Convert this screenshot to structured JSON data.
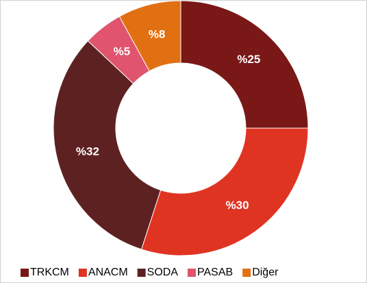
{
  "chart_data": {
    "type": "donut",
    "categories": [
      "TRKCM",
      "ANACM",
      "SODA",
      "PASAB",
      "Diğer"
    ],
    "values": [
      25,
      30,
      32,
      5,
      8
    ],
    "value_labels": [
      "%25",
      "%30",
      "%32",
      "%5",
      "%8"
    ],
    "colors": [
      "#7a1818",
      "#e03422",
      "#5e2121",
      "#e0546e",
      "#e07012"
    ],
    "legend": "bottom"
  }
}
